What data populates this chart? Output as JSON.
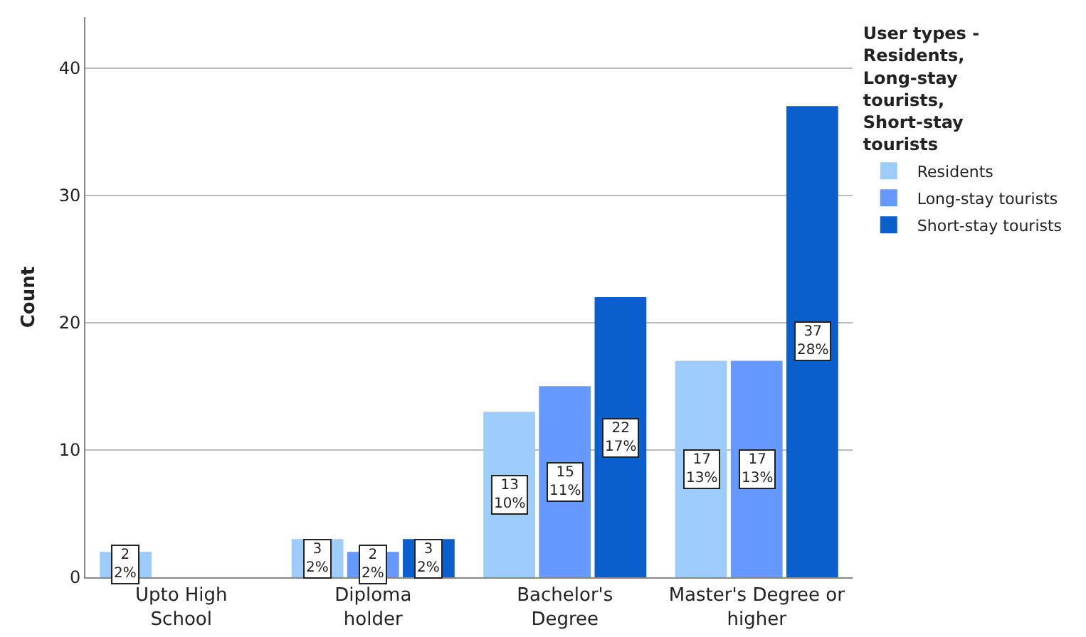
{
  "chart_data": {
    "type": "bar",
    "ylabel": "Count",
    "legend_title": "User types - Residents, Long-stay tourists, Short-stay tourists",
    "categories": [
      "Upto High School",
      "Diploma holder",
      "Bachelor's Degree",
      "Master's Degree or higher"
    ],
    "series": [
      {
        "name": "Residents",
        "color": "#9dcbfa",
        "values": [
          2,
          3,
          13,
          17
        ],
        "value_labels": [
          "2\n2%",
          "3\n2%",
          "13\n10%",
          "17\n13%"
        ]
      },
      {
        "name": "Long-stay tourists",
        "color": "#6699ff",
        "values": [
          null,
          2,
          15,
          17
        ],
        "value_labels": [
          null,
          "2\n2%",
          "15\n11%",
          "17\n13%"
        ]
      },
      {
        "name": "Short-stay tourists",
        "color": "#0a5fcc",
        "values": [
          null,
          3,
          22,
          37
        ],
        "value_labels": [
          null,
          "3\n2%",
          "22\n17%",
          "37\n28%"
        ]
      }
    ],
    "ylim": [
      0,
      44
    ],
    "yticks": [
      0,
      10,
      20,
      30,
      40
    ],
    "grid": "y",
    "legend": "right"
  }
}
